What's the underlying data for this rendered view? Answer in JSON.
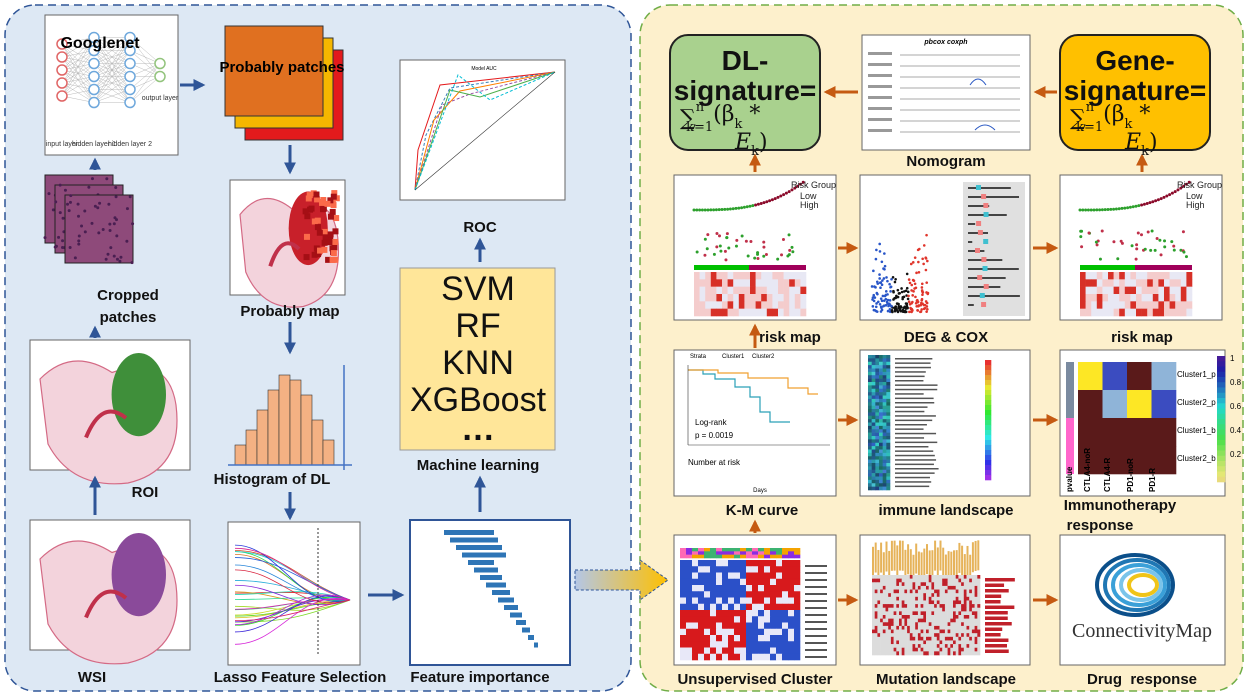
{
  "left_panel": {
    "googlenet": {
      "title": "Googlenet",
      "layers": [
        "input layer",
        "hidden layer 1",
        "hidden layer 2",
        "output layer"
      ]
    },
    "probably_patches": "Probably patches",
    "cropped_patches": [
      "Cropped",
      "patches"
    ],
    "probably_map": "Probably map",
    "roi": "ROI",
    "histogram": "Histogram of DL",
    "wsi": "WSI",
    "lasso": "Lasso Feature Selection",
    "feature_importance": "Feature importance",
    "roc": {
      "label": "ROC",
      "plot_title": "Model AUC"
    },
    "machine_learning": {
      "methods": [
        "SVM",
        "RF",
        "KNN",
        "XGBoost",
        "…"
      ],
      "label": "Machine learning"
    }
  },
  "right_panel": {
    "dl_signature": {
      "title": "DL-",
      "title2": "signature=",
      "formula": {
        "sum": "∑",
        "upper": "n",
        "lower": "k=1",
        "open": "(β",
        "sub1": "k",
        "star": " *",
        "e": "E",
        "sub2": "k",
        "close": ")"
      }
    },
    "gene_signature": {
      "title": "Gene-",
      "title2": "signature=",
      "formula": {
        "sum": "∑",
        "upper": "n",
        "lower": "k=1",
        "open": "(β",
        "sub1": "k",
        "star": " *",
        "e": "E",
        "sub2": "k",
        "close": ")"
      }
    },
    "nomogram": {
      "label": "Nomogram",
      "plot_title": "pbcox coxph"
    },
    "risk_map_1": {
      "label": "risk map",
      "legend_title": "Risk Group",
      "legend": [
        "Low",
        "High"
      ]
    },
    "deg_cox": {
      "label": "DEG & COX"
    },
    "risk_map_2": {
      "label": "risk map",
      "legend_title": "Risk Group",
      "legend": [
        "Low",
        "High"
      ]
    },
    "km_curve": {
      "label": "K-M curve",
      "strata": [
        "Strata",
        "Cluster1",
        "Cluster2"
      ],
      "log_rank": "Log-rank",
      "p_value": "p = 0.0019",
      "number_at_risk": "Number at risk",
      "x_label": "Days"
    },
    "immune_landscape": {
      "label": "immune landscape"
    },
    "immunotherapy": {
      "label": [
        "Immunotherapy",
        "response"
      ],
      "rows": [
        "Cluster1_p",
        "Cluster2_p",
        "Cluster1_b",
        "Cluster2_b"
      ],
      "columns": [
        "CTLA4-noR",
        "CTLA4-R",
        "PD1-noR",
        "PD1-R"
      ],
      "pvalue": "pvalue",
      "scale": [
        1,
        0.8,
        0.6,
        0.4,
        0.2
      ]
    },
    "unsupervised_cluster": {
      "label": "Unsupervised Cluster"
    },
    "mutation_landscape": {
      "label": "Mutation landscape"
    },
    "drug_response": {
      "label": "Drug  response",
      "logo": "ConnectivityMap"
    }
  }
}
